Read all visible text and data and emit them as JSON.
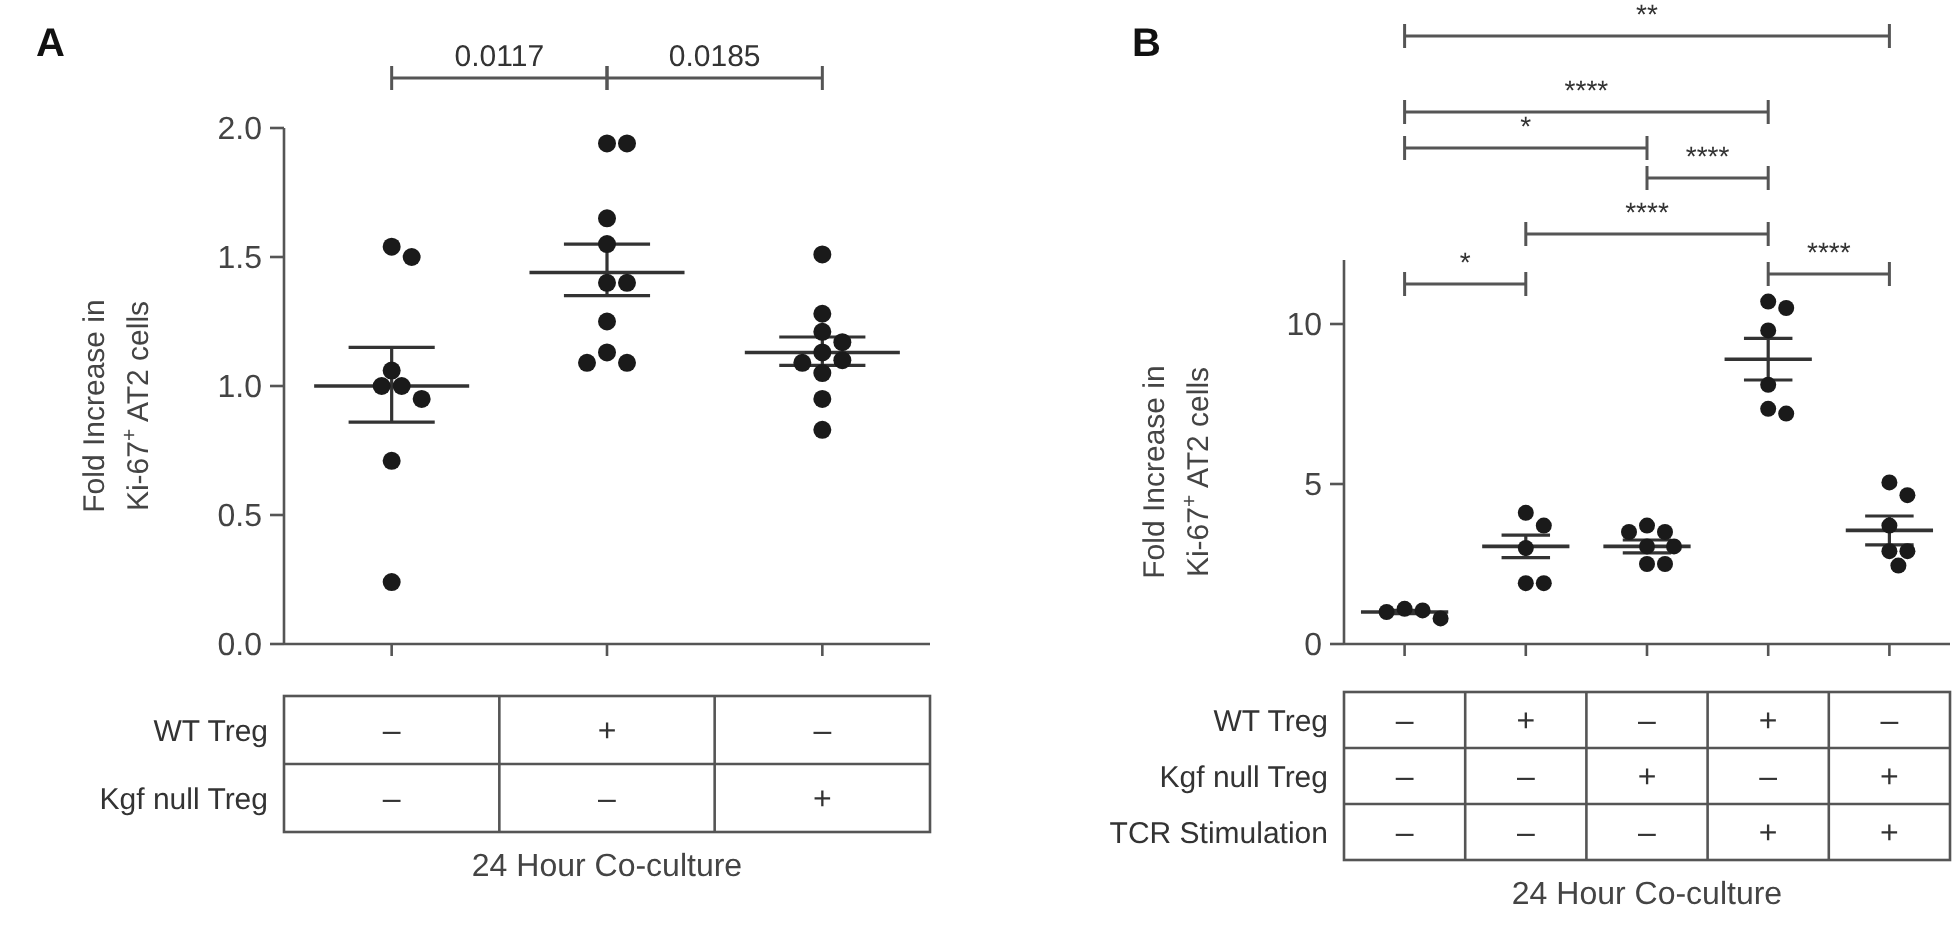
{
  "chart_data": [
    {
      "type": "scatter",
      "title": "A",
      "categories": [
        "–\n–",
        "+\n–",
        "–\n+"
      ],
      "xlabel": "24 Hour Co-culture",
      "ylabel": "Fold Increase in\nKi-67$^{+}$ AT2 cells",
      "ylim": [
        0,
        2
      ],
      "yticks": [
        {
          "value": 0,
          "label": "0.0"
        },
        {
          "value": 0.5,
          "label": "0.5"
        },
        {
          "value": 1,
          "label": "1.0"
        },
        {
          "value": 1.5,
          "label": "1.5"
        },
        {
          "value": 2,
          "label": "2.0"
        }
      ],
      "annotations": [
        "WT Treg",
        "Kgf null Treg",
        "0.0117",
        "0.0185"
      ],
      "series": [
        {
          "marker": "circle",
          "color": "#1a1a1a",
          "x": [
            "–\n–",
            "–\n–",
            "–\n–",
            "–\n–",
            "–\n–",
            "–\n–",
            "–\n–",
            "–\n–",
            "+\n–",
            "+\n–",
            "+\n–",
            "+\n–",
            "+\n–",
            "+\n–",
            "+\n–",
            "+\n–",
            "+\n–",
            "+\n–",
            "–\n+",
            "–\n+",
            "–\n+",
            "–\n+",
            "–\n+",
            "–\n+",
            "–\n+",
            "–\n+",
            "–\n+",
            "–\n+"
          ],
          "values": [
            1.54,
            1.5,
            1.06,
            1.0,
            1.0,
            0.95,
            0.71,
            0.24,
            1.94,
            1.94,
            1.65,
            1.55,
            1.4,
            1.4,
            1.25,
            1.13,
            1.09,
            1.09,
            1.51,
            1.28,
            1.21,
            1.17,
            1.13,
            1.1,
            1.09,
            1.05,
            0.95,
            0.83
          ]
        },
        {
          "type": "box",
          "color": "#333333",
          "boxes": [
            {
              "low": 0.86,
              "q1": 1.0,
              "median": 1.0,
              "q3": 1.0,
              "high": 1.15
            },
            {
              "low": 1.35,
              "q1": 1.44,
              "median": 1.44,
              "q3": 1.44,
              "high": 1.55
            },
            {
              "low": 1.08,
              "q1": 1.13,
              "median": 1.13,
              "q3": 1.13,
              "high": 1.19
            }
          ]
        }
      ]
    },
    {
      "type": "scatter",
      "title": "B",
      "categories": [
        "–\n–\n–",
        "+\n–\n–",
        "–\n+\n–",
        "+\n–\n+",
        "–\n+\n+"
      ],
      "xlabel": "24 Hour Co-culture",
      "ylabel": "Fold Increase in\nKi-67$^{+}$ AT2 cells",
      "ylim": [
        0,
        12
      ],
      "yticks": [
        0,
        5,
        10
      ],
      "annotations": [
        "WT Treg",
        "Kgf null Treg",
        "TCR Stimulation",
        "**",
        "****",
        "*",
        "****",
        "****",
        "*",
        "****"
      ],
      "series": [
        {
          "marker": "circle",
          "color": "#1a1a1a",
          "x": [
            "–\n–\n–",
            "–\n–\n–",
            "–\n–\n–",
            "–\n–\n–",
            "+\n–\n–",
            "+\n–\n–",
            "+\n–\n–",
            "+\n–\n–",
            "+\n–\n–",
            "–\n+\n–",
            "–\n+\n–",
            "–\n+\n–",
            "–\n+\n–",
            "–\n+\n–",
            "–\n+\n–",
            "–\n+\n–",
            "+\n–\n+",
            "+\n–\n+",
            "+\n–\n+",
            "+\n–\n+",
            "+\n–\n+",
            "+\n–\n+",
            "–\n+\n+",
            "–\n+\n+",
            "–\n+\n+",
            "–\n+\n+",
            "–\n+\n+",
            "–\n+\n+"
          ],
          "values": [
            1.1,
            1.05,
            1.0,
            0.8,
            4.1,
            3.7,
            3.0,
            1.9,
            1.9,
            3.7,
            3.5,
            3.5,
            3.05,
            3.05,
            2.5,
            2.5,
            10.7,
            10.5,
            9.8,
            8.1,
            7.35,
            7.2,
            5.05,
            4.65,
            3.7,
            2.9,
            2.9,
            2.45
          ]
        },
        {
          "type": "box",
          "color": "#333333",
          "boxes": [
            {
              "low": 0.95,
              "q1": 1.0,
              "median": 1.0,
              "q3": 1.0,
              "high": 1.05
            },
            {
              "low": 2.7,
              "q1": 3.05,
              "median": 3.05,
              "q3": 3.05,
              "high": 3.4
            },
            {
              "low": 2.85,
              "q1": 3.05,
              "median": 3.05,
              "q3": 3.05,
              "high": 3.25
            },
            {
              "low": 8.25,
              "q1": 8.9,
              "median": 8.9,
              "q3": 8.9,
              "high": 9.55
            },
            {
              "low": 3.1,
              "q1": 3.55,
              "median": 3.55,
              "q3": 3.55,
              "high": 4.0
            }
          ]
        }
      ]
    }
  ]
}
